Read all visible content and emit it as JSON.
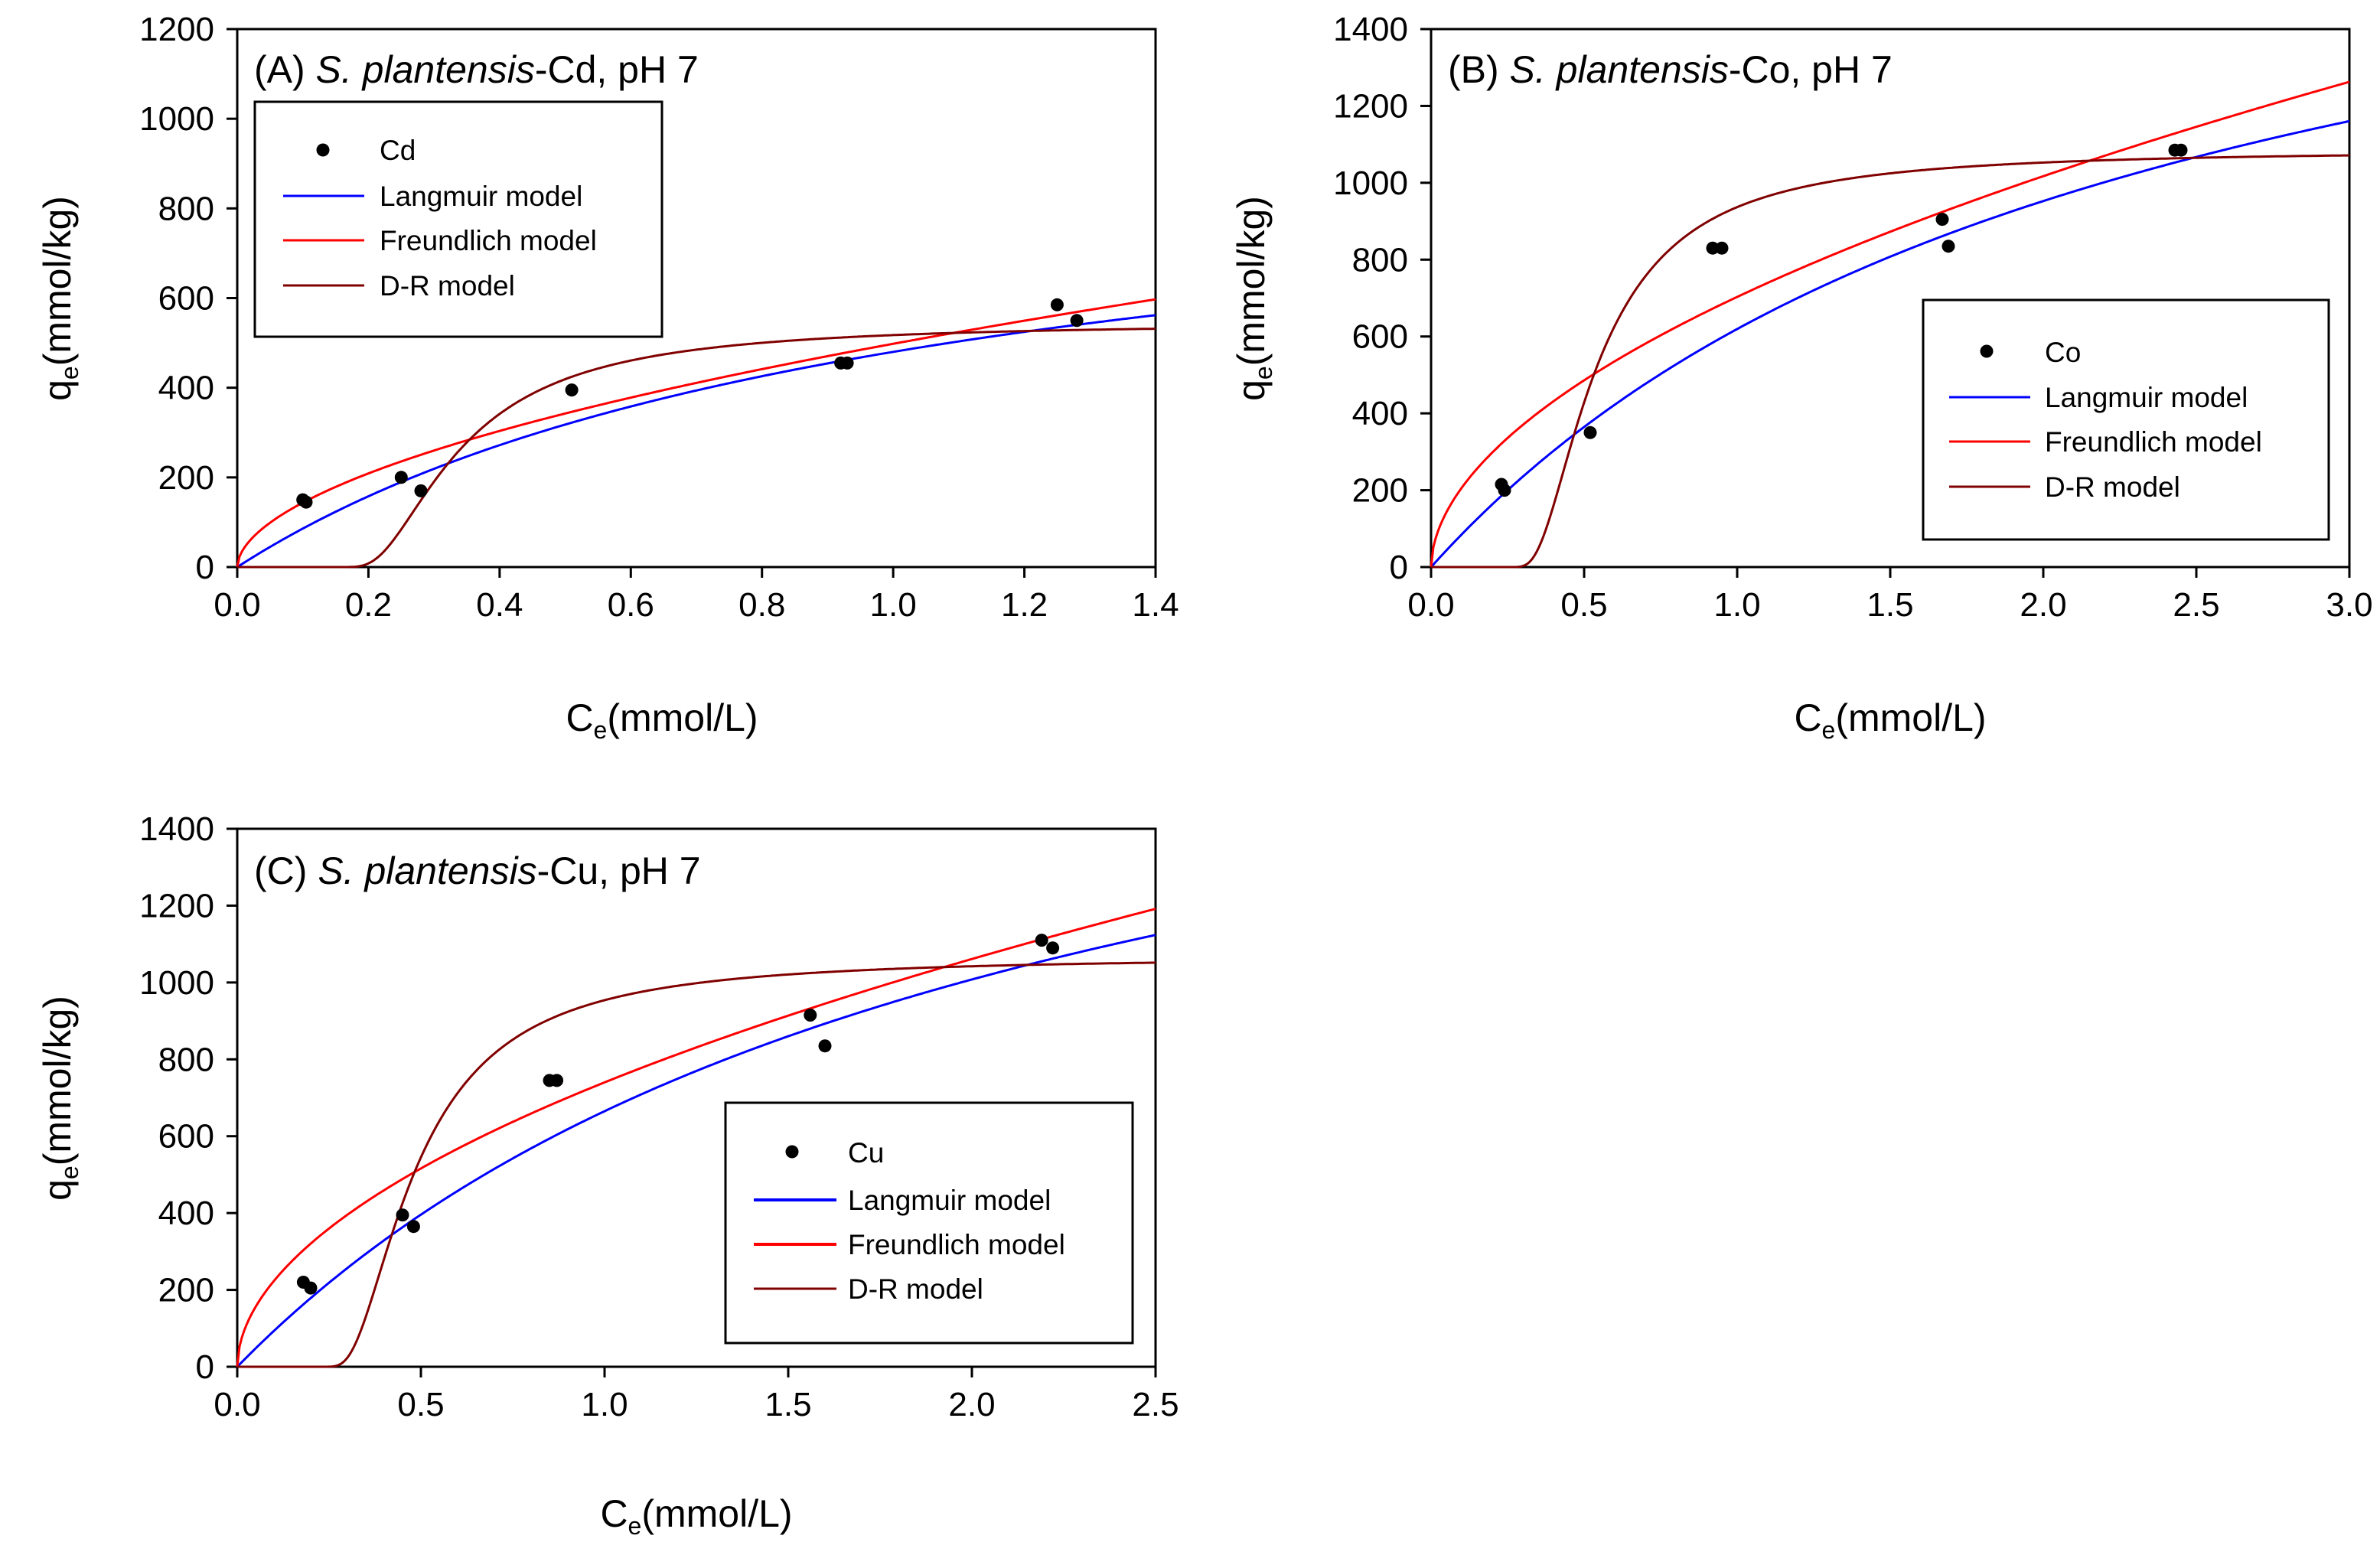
{
  "chart_data": [
    {
      "type": "scatter",
      "panel": "A",
      "title": {
        "prefix": "(A) ",
        "species": "S. plantensis",
        "suffix": "-Cd, pH 7"
      },
      "xlabel": {
        "main": "C",
        "sub": "e",
        "rest": "(mmol/L)"
      },
      "ylabel": {
        "main": "q",
        "sub": "e",
        "rest": "(mmol/kg)"
      },
      "xlim": [
        0,
        1.4
      ],
      "ylim": [
        0,
        1200
      ],
      "xticks": [
        0.0,
        0.2,
        0.4,
        0.6,
        0.8,
        1.0,
        1.2,
        1.4
      ],
      "yticks": [
        0,
        200,
        400,
        600,
        800,
        1000,
        1200
      ],
      "xtick_labels": [
        "0.0",
        "0.2",
        "0.4",
        "0.6",
        "0.8",
        "1.0",
        "1.2",
        "1.4"
      ],
      "ytick_labels": [
        "0",
        "200",
        "400",
        "600",
        "800",
        "1000",
        "1200"
      ],
      "legend_position": "top-left",
      "series": [
        {
          "name": "Cd",
          "kind": "points",
          "x": [
            0.1,
            0.105,
            0.25,
            0.28,
            0.51,
            0.92,
            0.93,
            1.25,
            1.28
          ],
          "y": [
            150,
            145,
            200,
            170,
            395,
            455,
            455,
            585,
            550
          ]
        },
        {
          "name": "Langmuir model",
          "kind": "curve",
          "model": "langmuir",
          "params": {
            "qmax": 980,
            "K": 0.96
          }
        },
        {
          "name": "Freundlich model",
          "kind": "curve",
          "model": "freundlich",
          "params": {
            "Kf": 498,
            "n": 0.54
          }
        },
        {
          "name": "D-R model",
          "kind": "curve",
          "model": "dr",
          "params": {
            "qmax": 545,
            "c0": 0.1,
            "s": 0.29,
            "x0": 1.0,
            "p": 2.0
          }
        }
      ]
    },
    {
      "type": "scatter",
      "panel": "B",
      "title": {
        "prefix": "(B) ",
        "species": "S. plantensis",
        "suffix": "-Co, pH 7"
      },
      "xlabel": {
        "main": "C",
        "sub": "e",
        "rest": "(mmol/L)"
      },
      "ylabel": {
        "main": "q",
        "sub": "e",
        "rest": "(mmol/kg)"
      },
      "xlim": [
        0,
        3.0
      ],
      "ylim": [
        0,
        1400
      ],
      "xticks": [
        0.0,
        0.5,
        1.0,
        1.5,
        2.0,
        2.5,
        3.0
      ],
      "yticks": [
        0,
        200,
        400,
        600,
        800,
        1000,
        1200,
        1400
      ],
      "xtick_labels": [
        "0.0",
        "0.5",
        "1.0",
        "1.5",
        "2.0",
        "2.5",
        "3.0"
      ],
      "ytick_labels": [
        "0",
        "200",
        "400",
        "600",
        "800",
        "1000",
        "1200",
        "1400"
      ],
      "legend_position": "center-right",
      "series": [
        {
          "name": "Co",
          "kind": "points",
          "x": [
            0.23,
            0.24,
            0.52,
            0.92,
            0.95,
            1.67,
            1.69,
            2.43,
            2.45
          ],
          "y": [
            215,
            200,
            350,
            830,
            830,
            905,
            835,
            1085,
            1085
          ]
        },
        {
          "name": "Langmuir model",
          "kind": "curve",
          "model": "langmuir",
          "params": {
            "qmax": 2060,
            "K": 0.43
          }
        },
        {
          "name": "Freundlich model",
          "kind": "curve",
          "model": "freundlich",
          "params": {
            "Kf": 703,
            "n": 0.533
          }
        },
        {
          "name": "D-R model",
          "kind": "curve",
          "model": "dr",
          "params": {
            "qmax": 1085,
            "c0": 0.17,
            "s": 0.45,
            "x0": 2.0,
            "p": 2.0
          }
        }
      ]
    },
    {
      "type": "scatter",
      "panel": "C",
      "title": {
        "prefix": "(C) ",
        "species": "S. plantensis",
        "suffix": "-Cu, pH 7"
      },
      "xlabel": {
        "main": "C",
        "sub": "e",
        "rest": "(mmol/L)"
      },
      "ylabel": {
        "main": "q",
        "sub": "e",
        "rest": "(mmol/kg)"
      },
      "xlim": [
        0,
        2.5
      ],
      "ylim": [
        0,
        1400
      ],
      "xticks": [
        0.0,
        0.5,
        1.0,
        1.5,
        2.0,
        2.5
      ],
      "yticks": [
        0,
        200,
        400,
        600,
        800,
        1000,
        1200,
        1400
      ],
      "xtick_labels": [
        "0.0",
        "0.5",
        "1.0",
        "1.5",
        "2.0",
        "2.5"
      ],
      "ytick_labels": [
        "0",
        "200",
        "400",
        "600",
        "800",
        "1000",
        "1200",
        "1400"
      ],
      "legend_position": "center-right",
      "series": [
        {
          "name": "Cu",
          "kind": "points",
          "x": [
            0.18,
            0.2,
            0.45,
            0.48,
            0.85,
            0.87,
            1.56,
            1.6,
            2.19,
            2.22
          ],
          "y": [
            220,
            205,
            395,
            365,
            745,
            745,
            915,
            835,
            1110,
            1090
          ]
        },
        {
          "name": "Langmuir model",
          "kind": "curve",
          "model": "langmuir",
          "params": {
            "qmax": 2080,
            "K": 0.47
          }
        },
        {
          "name": "Freundlich model",
          "kind": "curve",
          "model": "freundlich",
          "params": {
            "Kf": 740,
            "n": 0.52
          }
        },
        {
          "name": "D-R model",
          "kind": "curve",
          "model": "dr",
          "params": {
            "qmax": 1067,
            "c0": 0.155,
            "s": 0.4,
            "x0": 1.8,
            "p": 2.0
          }
        }
      ]
    }
  ],
  "colors": {
    "points": "#000000",
    "langmuir": "#0000ff",
    "freundlich": "#ff0000",
    "dr": "#800000",
    "axes": "#000000"
  }
}
